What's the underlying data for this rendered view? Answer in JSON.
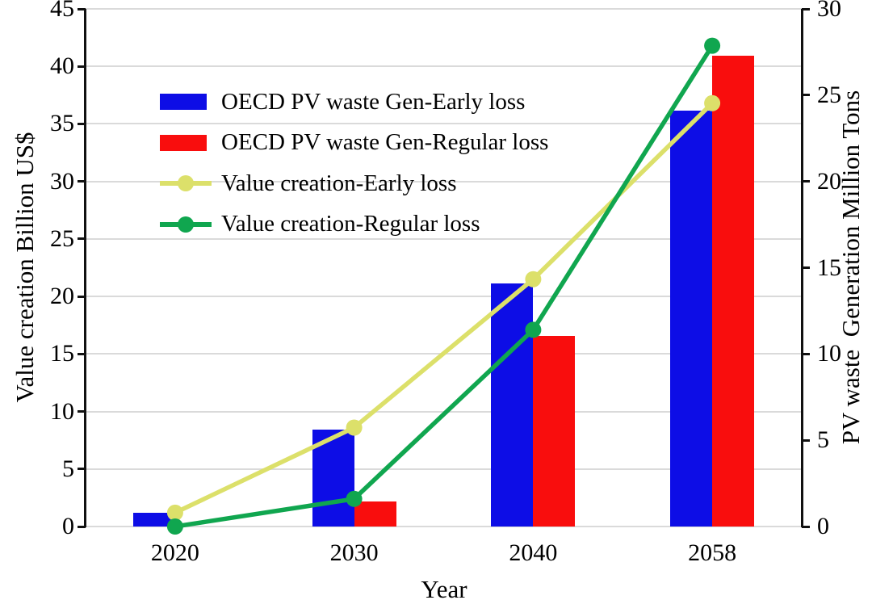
{
  "chart_data": {
    "type": "bar+line dual-axis combo",
    "categories": [
      "2020",
      "2030",
      "2040",
      "2058"
    ],
    "bar_series": [
      {
        "name": "OECD PV waste Gen-Early loss",
        "axis": "right",
        "unit": "Million Tons",
        "color": "#0d0de6",
        "values": [
          0.8,
          5.6,
          14.1,
          24.1
        ]
      },
      {
        "name": "OECD PV waste Gen-Regular loss",
        "axis": "right",
        "unit": "Million Tons",
        "color": "#f90d0d",
        "values": [
          0,
          1.45,
          11.05,
          27.3
        ]
      }
    ],
    "line_series": [
      {
        "name": "Value creation-Early loss",
        "axis": "left",
        "unit": "Billion US$",
        "color": "#dce06a",
        "marker": "circle",
        "values": [
          1.2,
          8.6,
          21.5,
          36.8
        ]
      },
      {
        "name": "Value creation-Regular loss",
        "axis": "left",
        "unit": "Billion US$",
        "color": "#10a64f",
        "marker": "circle",
        "values": [
          0,
          2.4,
          17.1,
          41.8
        ]
      }
    ],
    "left_axis": {
      "label": "Value creation Billion US$",
      "min": 0,
      "max": 45,
      "step": 5,
      "ticks": [
        0,
        5,
        10,
        15,
        20,
        25,
        30,
        35,
        40,
        45
      ]
    },
    "right_axis": {
      "label": "PV waste  Generation Million Tons",
      "min": 0,
      "max": 30,
      "step": 5,
      "ticks": [
        0,
        5,
        10,
        15,
        20,
        25,
        30
      ]
    },
    "x_axis": {
      "label": "Year",
      "tick_labels": [
        "2020",
        "2030",
        "2040",
        "2058"
      ]
    },
    "grid": {
      "show": true,
      "color": "#dadada",
      "follows": "left-axis-major-ticks"
    },
    "legend": {
      "position": "upper-left-inside",
      "entries": [
        {
          "type": "bar",
          "series": "OECD PV waste Gen-Early loss"
        },
        {
          "type": "bar",
          "series": "OECD PV waste Gen-Regular loss"
        },
        {
          "type": "line",
          "series": "Value creation-Early loss"
        },
        {
          "type": "line",
          "series": "Value creation-Regular loss"
        }
      ]
    },
    "colors": {
      "background": "#ffffff",
      "axis": "#111111",
      "grid": "#dadada",
      "text": "#000000"
    }
  }
}
